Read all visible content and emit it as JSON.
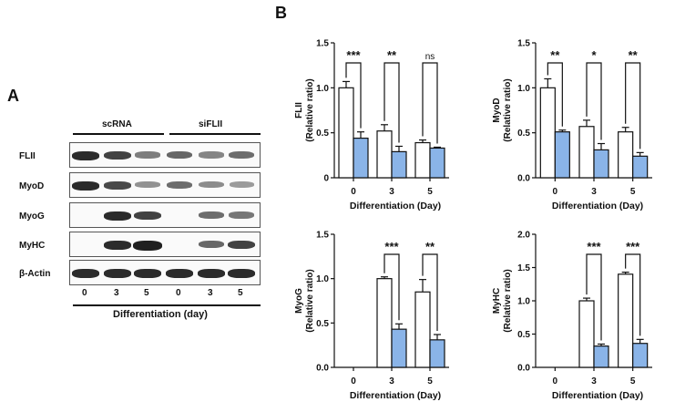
{
  "panel_a": {
    "letter": "A",
    "groups": [
      "scRNA",
      "siFLII"
    ],
    "rows": [
      {
        "label": "FLII",
        "bands": [
          1.0,
          0.85,
          0.45,
          0.6,
          0.4,
          0.55
        ]
      },
      {
        "label": "MyoD",
        "bands": [
          1.0,
          0.8,
          0.3,
          0.55,
          0.35,
          0.25
        ]
      },
      {
        "label": "MyoG",
        "bands": [
          0,
          1.0,
          0.85,
          0,
          0.55,
          0.5
        ]
      },
      {
        "label": "MyHC",
        "bands": [
          0,
          1.0,
          1.3,
          0,
          0.6,
          0.85
        ]
      },
      {
        "label": "β-Actin",
        "bands": [
          1.0,
          1.0,
          1.0,
          1.0,
          1.0,
          1.0
        ]
      }
    ],
    "lane_labels": [
      "0",
      "3",
      "5",
      "0",
      "3",
      "5"
    ],
    "xlabel": "Differentiation (day)"
  },
  "panel_b": {
    "letter": "B"
  },
  "colors": {
    "control": "#ffffff",
    "sifl": "#8ab4e8",
    "stroke": "#111111"
  },
  "chart_data": [
    {
      "type": "bar",
      "categories": [
        "0",
        "3",
        "5"
      ],
      "ylabel": "FLII\n(Relative ratio)",
      "xlabel": "Differentiation (Day)",
      "ylim": [
        0,
        1.5
      ],
      "yticks": [
        "0",
        "0.5",
        "1.0",
        "1.5"
      ],
      "series": [
        {
          "values": [
            1.0,
            0.52,
            0.39
          ],
          "errors": [
            0.07,
            0.07,
            0.03
          ]
        },
        {
          "values": [
            0.44,
            0.29,
            0.33
          ],
          "errors": [
            0.07,
            0.06,
            0.01
          ]
        }
      ],
      "significance": [
        "***",
        "**",
        "ns"
      ]
    },
    {
      "type": "bar",
      "categories": [
        "0",
        "3",
        "5"
      ],
      "ylabel": "MyoD\n(Relative ratio)",
      "xlabel": "Differentiation (Day)",
      "ylim": [
        0,
        1.5
      ],
      "yticks": [
        "0.0",
        "0.5",
        "1.0",
        "1.5"
      ],
      "series": [
        {
          "values": [
            1.0,
            0.57,
            0.51
          ],
          "errors": [
            0.1,
            0.07,
            0.05
          ]
        },
        {
          "values": [
            0.51,
            0.31,
            0.24
          ],
          "errors": [
            0.02,
            0.07,
            0.04
          ]
        }
      ],
      "significance": [
        "**",
        "*",
        "**"
      ]
    },
    {
      "type": "bar",
      "categories": [
        "0",
        "3",
        "5"
      ],
      "ylabel": "MyoG\n(Relative ratio)",
      "xlabel": "Differentiation (Day)",
      "ylim": [
        0,
        1.5
      ],
      "yticks": [
        "0.0",
        "0.5",
        "1.0",
        "1.5"
      ],
      "series": [
        {
          "values": [
            0,
            1.0,
            0.85
          ],
          "errors": [
            0,
            0.02,
            0.14
          ]
        },
        {
          "values": [
            0,
            0.43,
            0.31
          ],
          "errors": [
            0,
            0.06,
            0.06
          ]
        }
      ],
      "significance": [
        "",
        "***",
        "**"
      ]
    },
    {
      "type": "bar",
      "categories": [
        "0",
        "3",
        "5"
      ],
      "ylabel": "MyHC\n(Relative ratio)",
      "xlabel": "Differentiation (Day)",
      "ylim": [
        0,
        2.0
      ],
      "yticks": [
        "0.0",
        "0.5",
        "1.0",
        "1.5",
        "2.0"
      ],
      "series": [
        {
          "values": [
            0,
            1.0,
            1.4
          ],
          "errors": [
            0,
            0.04,
            0.03
          ]
        },
        {
          "values": [
            0,
            0.32,
            0.36
          ],
          "errors": [
            0,
            0.03,
            0.06
          ]
        }
      ],
      "significance": [
        "",
        "***",
        "***"
      ]
    }
  ]
}
